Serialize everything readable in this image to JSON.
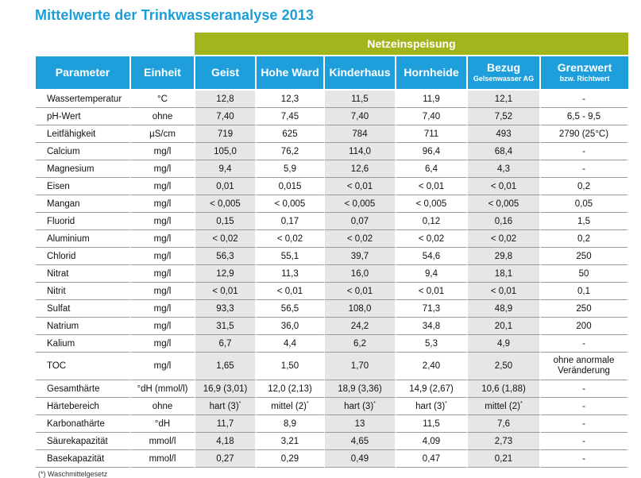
{
  "title": "Mittelwerte der Trinkwasseranalyse 2013",
  "group_header": "Netzeinspeisung",
  "columns": [
    {
      "label": "Parameter",
      "sub": ""
    },
    {
      "label": "Einheit",
      "sub": ""
    },
    {
      "label": "Geist",
      "sub": ""
    },
    {
      "label": "Hohe Ward",
      "sub": ""
    },
    {
      "label": "Kinderhaus",
      "sub": ""
    },
    {
      "label": "Hornheide",
      "sub": ""
    },
    {
      "label": "Bezug",
      "sub": "Gelsenwasser AG"
    },
    {
      "label": "Grenzwert",
      "sub": "bzw. Richtwert"
    }
  ],
  "rows": [
    {
      "param": "Wassertemperatur",
      "unit": "°C",
      "geist": "12,8",
      "hohe_ward": "12,3",
      "kinderhaus": "11,5",
      "hornheide": "11,9",
      "bezug": "12,1",
      "grenzwert": "-"
    },
    {
      "param": "pH-Wert",
      "unit": "ohne",
      "geist": "7,40",
      "hohe_ward": "7,45",
      "kinderhaus": "7,40",
      "hornheide": "7,40",
      "bezug": "7,52",
      "grenzwert": "6,5 - 9,5"
    },
    {
      "param": "Leitfähigkeit",
      "unit": "µS/cm",
      "geist": "719",
      "hohe_ward": "625",
      "kinderhaus": "784",
      "hornheide": "711",
      "bezug": "493",
      "grenzwert": "2790 (25°C)"
    },
    {
      "param": "Calcium",
      "unit": "mg/l",
      "geist": "105,0",
      "hohe_ward": "76,2",
      "kinderhaus": "114,0",
      "hornheide": "96,4",
      "bezug": "68,4",
      "grenzwert": "-"
    },
    {
      "param": "Magnesium",
      "unit": "mg/l",
      "geist": "9,4",
      "hohe_ward": "5,9",
      "kinderhaus": "12,6",
      "hornheide": "6,4",
      "bezug": "4,3",
      "grenzwert": "-"
    },
    {
      "param": "Eisen",
      "unit": "mg/l",
      "geist": "0,01",
      "hohe_ward": "0,015",
      "kinderhaus": "< 0,01",
      "hornheide": "< 0,01",
      "bezug": "< 0,01",
      "grenzwert": "0,2"
    },
    {
      "param": "Mangan",
      "unit": "mg/l",
      "geist": "< 0,005",
      "hohe_ward": "< 0,005",
      "kinderhaus": "< 0,005",
      "hornheide": "< 0,005",
      "bezug": "< 0,005",
      "grenzwert": "0,05"
    },
    {
      "param": "Fluorid",
      "unit": "mg/l",
      "geist": "0,15",
      "hohe_ward": "0,17",
      "kinderhaus": "0,07",
      "hornheide": "0,12",
      "bezug": "0,16",
      "grenzwert": "1,5"
    },
    {
      "param": "Aluminium",
      "unit": "mg/l",
      "geist": "< 0,02",
      "hohe_ward": "< 0,02",
      "kinderhaus": "< 0,02",
      "hornheide": "< 0,02",
      "bezug": "< 0,02",
      "grenzwert": "0,2"
    },
    {
      "param": "Chlorid",
      "unit": "mg/l",
      "geist": "56,3",
      "hohe_ward": "55,1",
      "kinderhaus": "39,7",
      "hornheide": "54,6",
      "bezug": "29,8",
      "grenzwert": "250"
    },
    {
      "param": "Nitrat",
      "unit": "mg/l",
      "geist": "12,9",
      "hohe_ward": "11,3",
      "kinderhaus": "16,0",
      "hornheide": "9,4",
      "bezug": "18,1",
      "grenzwert": "50"
    },
    {
      "param": "Nitrit",
      "unit": "mg/l",
      "geist": "< 0,01",
      "hohe_ward": "< 0,01",
      "kinderhaus": "< 0,01",
      "hornheide": "< 0,01",
      "bezug": "< 0,01",
      "grenzwert": "0,1"
    },
    {
      "param": "Sulfat",
      "unit": "mg/l",
      "geist": "93,3",
      "hohe_ward": "56,5",
      "kinderhaus": "108,0",
      "hornheide": "71,3",
      "bezug": "48,9",
      "grenzwert": "250"
    },
    {
      "param": "Natrium",
      "unit": "mg/l",
      "geist": "31,5",
      "hohe_ward": "36,0",
      "kinderhaus": "24,2",
      "hornheide": "34,8",
      "bezug": "20,1",
      "grenzwert": "200"
    },
    {
      "param": "Kalium",
      "unit": "mg/l",
      "geist": "6,7",
      "hohe_ward": "4,4",
      "kinderhaus": "6,2",
      "hornheide": "5,3",
      "bezug": "4,9",
      "grenzwert": "-"
    },
    {
      "param": "TOC",
      "unit": "mg/l",
      "geist": "1,65",
      "hohe_ward": "1,50",
      "kinderhaus": "1,70",
      "hornheide": "2,40",
      "bezug": "2,50",
      "grenzwert": "ohne anormale Veränderung"
    },
    {
      "param": "Gesamthärte",
      "unit": "°dH (mmol/l)",
      "geist": "16,9 (3,01)",
      "hohe_ward": "12,0 (2,13)",
      "kinderhaus": "18,9 (3,36)",
      "hornheide": "14,9 (2,67)",
      "bezug": "10,6 (1,88)",
      "grenzwert": "-"
    },
    {
      "param": "Härtebereich",
      "unit": "ohne",
      "geist": "hart (3)",
      "hohe_ward": "mittel (2)",
      "kinderhaus": "hart (3)",
      "hornheide": "hart (3)",
      "bezug": "mittel (2)",
      "grenzwert": "-",
      "sup": "*"
    },
    {
      "param": "Karbonathärte",
      "unit": "°dH",
      "geist": "11,7",
      "hohe_ward": "8,9",
      "kinderhaus": "13",
      "hornheide": "11,5",
      "bezug": "7,6",
      "grenzwert": "-"
    },
    {
      "param": "Säurekapazität",
      "unit": "mmol/l",
      "geist": "4,18",
      "hohe_ward": "3,21",
      "kinderhaus": "4,65",
      "hornheide": "4,09",
      "bezug": "2,73",
      "grenzwert": "-"
    },
    {
      "param": "Basekapazität",
      "unit": "mmol/l",
      "geist": "0,27",
      "hohe_ward": "0,29",
      "kinderhaus": "0,49",
      "hornheide": "0,47",
      "bezug": "0,21",
      "grenzwert": "-"
    }
  ],
  "footnote": "(*) Waschmittelgesetz",
  "colors": {
    "title": "#1a9ed9",
    "group_header_bg": "#a3b51c",
    "header_bg": "#1e9fdc",
    "stripe": "#e6e6e6"
  }
}
